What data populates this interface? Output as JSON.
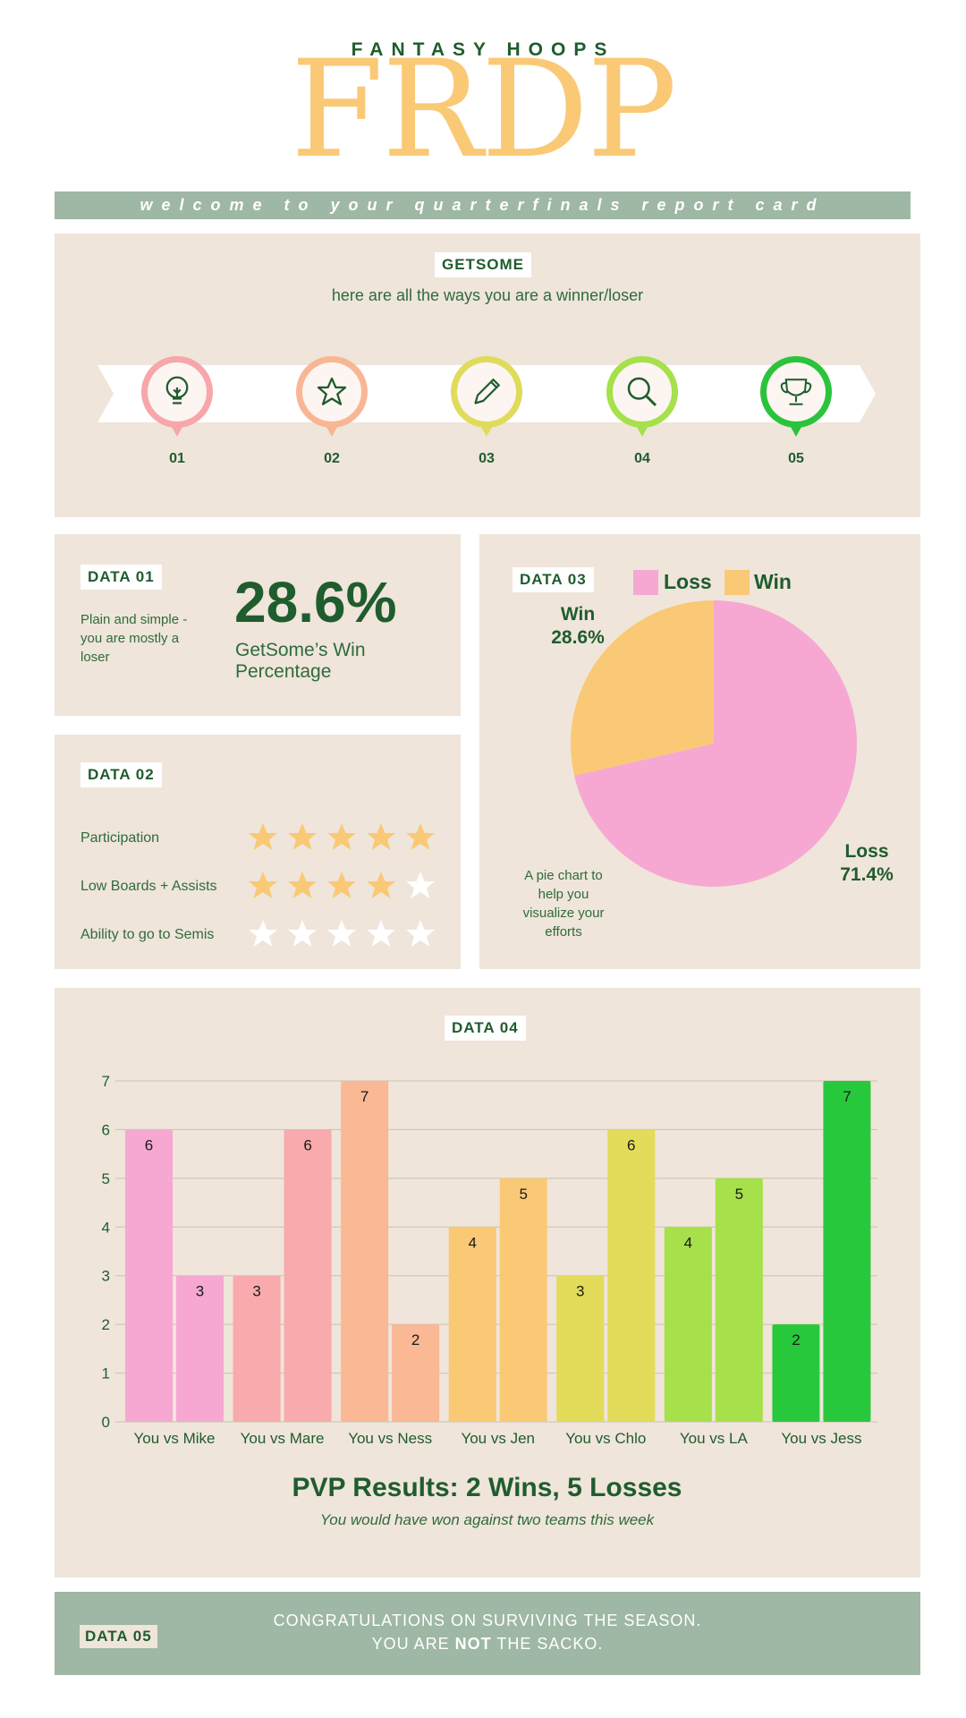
{
  "header": {
    "eyebrow": "FANTASY HOOPS",
    "logo": "FRDP"
  },
  "welcome": "welcome to your quarterfinals report card",
  "intro": {
    "team_tag": "GETSOME",
    "subtitle": "here are all the ways you are a winner/loser",
    "steps": [
      {
        "num": "01",
        "icon": "lightbulb-icon",
        "color": "#f7a6ab"
      },
      {
        "num": "02",
        "icon": "star-icon",
        "color": "#f9b694"
      },
      {
        "num": "03",
        "icon": "pencil-icon",
        "color": "#e0db5a"
      },
      {
        "num": "04",
        "icon": "search-icon",
        "color": "#a6e04a"
      },
      {
        "num": "05",
        "icon": "trophy-icon",
        "color": "#2bc33c"
      }
    ]
  },
  "data01": {
    "tag": "DATA 01",
    "blurb_lines": [
      "Plain and simple -",
      "you are mostly a",
      "loser"
    ],
    "percentage": "28.6%",
    "caption_lines": [
      "GetSome’s Win",
      "Percentage"
    ]
  },
  "data02": {
    "tag": "DATA 02",
    "rows": [
      {
        "label": "Participation",
        "rating": 5
      },
      {
        "label": "Low Boards + Assists",
        "rating": 4
      },
      {
        "label": "Ability to go to Semis",
        "rating": 0
      }
    ],
    "max_rating": 5,
    "star_color": "#fac976"
  },
  "data03": {
    "tag": "DATA 03",
    "legend": [
      {
        "label": "Loss",
        "color": "#f6a8d2"
      },
      {
        "label": "Win",
        "color": "#fac976"
      }
    ],
    "win_label": {
      "name": "Win",
      "pct": "28.6%"
    },
    "loss_label": {
      "name": "Loss",
      "pct": "71.4%"
    },
    "note_lines": [
      "A pie chart to",
      "help you",
      "visualize your",
      "efforts"
    ]
  },
  "data04": {
    "tag": "DATA 04",
    "pvp_title": "PVP Results: 2 Wins, 5 Losses",
    "pvp_subtitle": "You would have won against two teams this week"
  },
  "data05": {
    "tag": "DATA 05",
    "line1": "CONGRATULATIONS ON SURVIVING THE SEASON.",
    "line2_pre": "YOU ARE ",
    "line2_bold": "NOT",
    "line2_post": " THE SACKO."
  },
  "chart_data": [
    {
      "type": "pie",
      "slices": [
        {
          "label": "Loss",
          "value": 71.4,
          "color": "#f6a8d2"
        },
        {
          "label": "Win",
          "value": 28.6,
          "color": "#fac976"
        }
      ]
    },
    {
      "type": "bar",
      "categories": [
        "You vs Mike",
        "You vs Mare",
        "You vs Ness",
        "You vs Jen",
        "You vs Chlo",
        "You vs LA",
        "You vs Jess"
      ],
      "pairs": [
        {
          "values": [
            6,
            3
          ],
          "color": "#f6a8d2"
        },
        {
          "values": [
            3,
            6
          ],
          "color": "#f8aaad"
        },
        {
          "values": [
            7,
            2
          ],
          "color": "#fab895"
        },
        {
          "values": [
            4,
            5
          ],
          "color": "#fac976"
        },
        {
          "values": [
            3,
            6
          ],
          "color": "#e3db5a"
        },
        {
          "values": [
            4,
            5
          ],
          "color": "#a6e04a"
        },
        {
          "values": [
            2,
            7
          ],
          "color": "#28c83d"
        }
      ],
      "ylim": [
        0,
        7
      ],
      "yticks": [
        0,
        1,
        2,
        3,
        4,
        5,
        6,
        7
      ],
      "grid": true
    }
  ]
}
